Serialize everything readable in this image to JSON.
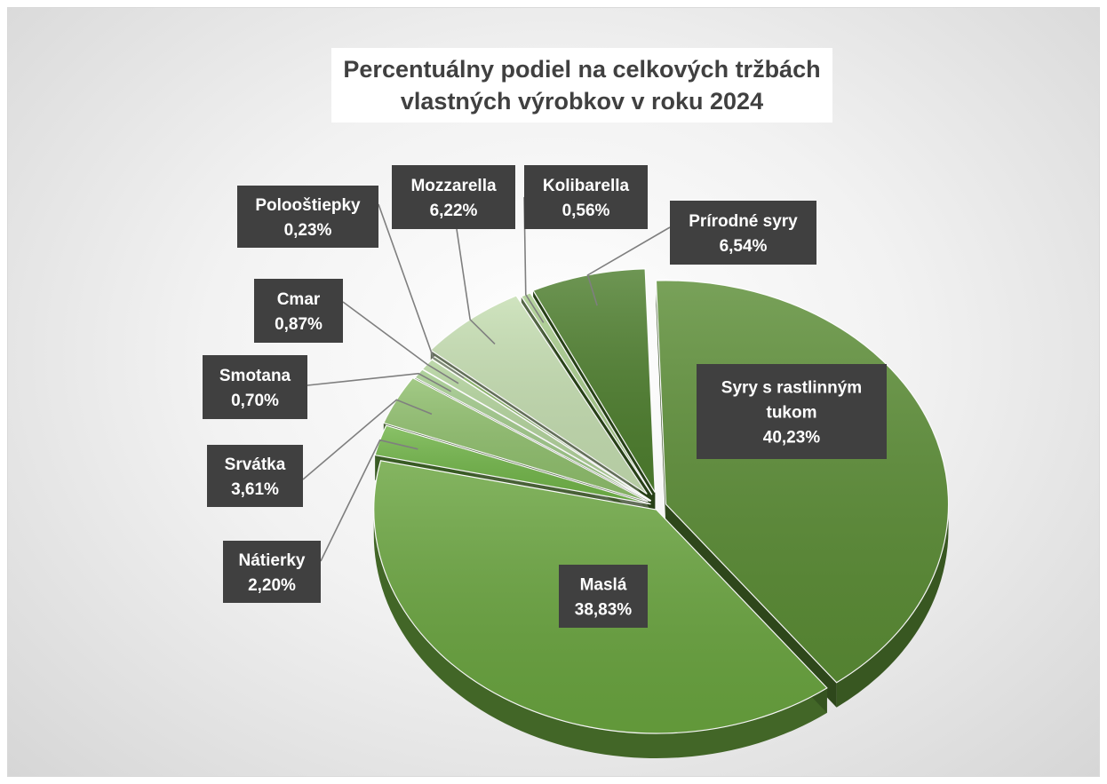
{
  "chart_data": {
    "type": "pie",
    "title": "Percentuálny podiel na celkových tržbách\nvlastných výrobkov v roku 2024",
    "legend": "none",
    "slices": [
      {
        "name": "Syry s rastlinným\ntukom",
        "value": 40.23,
        "label": "40,23%",
        "color": "#5b8d35"
      },
      {
        "name": "Maslá",
        "value": 38.83,
        "label": "38,83%",
        "color": "#6aa53f"
      },
      {
        "name": "Nátierky",
        "value": 2.2,
        "label": "2,20%",
        "color": "#71b548"
      },
      {
        "name": "Srvátka",
        "value": 3.61,
        "label": "3,61%",
        "color": "#8fbf6c"
      },
      {
        "name": "Smotana",
        "value": 0.7,
        "label": "0,70%",
        "color": "#9fc888"
      },
      {
        "name": "Cmar",
        "value": 0.87,
        "label": "0,87%",
        "color": "#b0d199"
      },
      {
        "name": "Polooštiepky",
        "value": 0.23,
        "label": "0,23%",
        "color": "#7fae5a"
      },
      {
        "name": "Mozzarella",
        "value": 6.22,
        "label": "6,22%",
        "color": "#c5deb1"
      },
      {
        "name": "Kolibarella",
        "value": 0.56,
        "label": "0,56%",
        "color": "#a8cc8c"
      },
      {
        "name": "Prírodné syry",
        "value": 6.54,
        "label": "6,54%",
        "color": "#4e7f2e"
      }
    ]
  }
}
